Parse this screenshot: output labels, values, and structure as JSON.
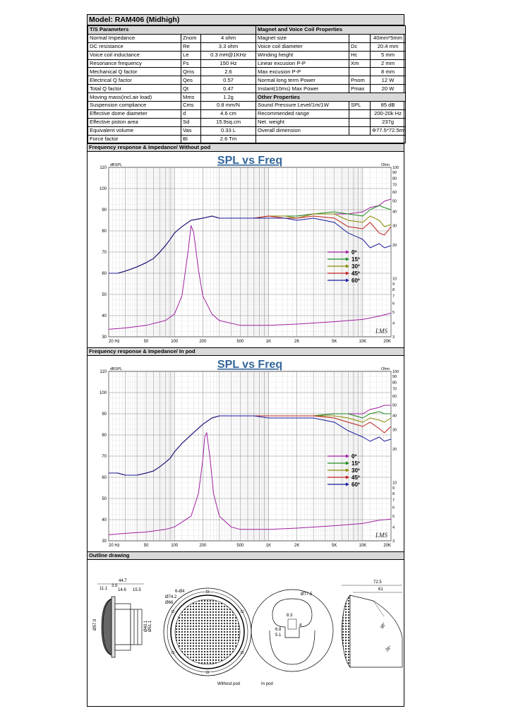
{
  "model_title": "Model: RAM406 (Midhigh)",
  "ts_header": "T/S Parameters",
  "magnet_header": "Magnet and Voice Coil Properties",
  "other_header": "Other Properties",
  "ts_params": [
    {
      "name": "Normal Impedance",
      "symbol": "Znom",
      "value": "4 ohm"
    },
    {
      "name": "DC resistance",
      "symbol": "Re",
      "value": "3.3 ohm"
    },
    {
      "name": "Voice coil inductance",
      "symbol": "Le",
      "value": "0.3 mH@1KHz"
    },
    {
      "name": "Resonance frequency",
      "symbol": "Fs",
      "value": "150 Hz"
    },
    {
      "name": "Mechanical Q factor",
      "symbol": "Qms",
      "value": "2.6"
    },
    {
      "name": "Electrical Q factor",
      "symbol": "Qes",
      "value": "0.57"
    },
    {
      "name": "Total Q factor",
      "symbol": "Qt",
      "value": "0.47"
    },
    {
      "name": "Moving mass(incl.air load)",
      "symbol": "Mms",
      "value": "1.2g"
    },
    {
      "name": "Suspension compliance",
      "symbol": "Cms",
      "value": "0.8 mm/N"
    },
    {
      "name": "Effective dome diameter",
      "symbol": "d",
      "value": "4.6 cm"
    },
    {
      "name": "Effective piston area",
      "symbol": "Sd",
      "value": "15.9sq.cm"
    },
    {
      "name": "Equivalent volume",
      "symbol": "Vas",
      "value": "0.33 L"
    },
    {
      "name": "Force factor",
      "symbol": "Bl",
      "value": "2.6 Tm"
    }
  ],
  "magnet_params": [
    {
      "name": "Magnet size",
      "symbol": "",
      "value": "40mm*5mm"
    },
    {
      "name": "Voice coil diameter",
      "symbol": "Dc",
      "value": "20.4 mm"
    },
    {
      "name": "Winding height",
      "symbol": "Hc",
      "value": "5 mm"
    },
    {
      "name": "Linear excusion P-P",
      "symbol": "Xm",
      "value": "2 mm"
    },
    {
      "name": "Max excusion P-P",
      "symbol": "",
      "value": "8 mm"
    },
    {
      "name": "Normal long term Power",
      "symbol": "Pnom",
      "value": "12 W"
    },
    {
      "name": "Instant(10ms) Max Power",
      "symbol": "Pmax",
      "value": "20 W"
    }
  ],
  "other_params": [
    {
      "name": "Sound Pressure Level/1m/1W",
      "symbol": "SPL",
      "value": "85 dB"
    },
    {
      "name": "Recommended range",
      "symbol": "",
      "value": "200-20k Hz"
    },
    {
      "name": "Net. weight",
      "symbol": "",
      "value": "237g"
    },
    {
      "name": "Overall dimension",
      "symbol": "",
      "value": "Φ77.5*72.5mm"
    }
  ],
  "section1_title": "Frequency response & Impedance/ Without pod",
  "section2_title": "Frequency response & Impedance/ In pod",
  "outline_title": "Outline drawing",
  "colors": {
    "c0": "#a020a0",
    "c15": "#1f8a1f",
    "c30": "#8a8a00",
    "c45": "#c02020",
    "c60": "#1a1aa0"
  },
  "chart_data": [
    {
      "type": "line",
      "title": "SPL vs Freq",
      "ylabel": "dBSPL",
      "y2label": "Ohm",
      "xscale": "log",
      "xlim": [
        20,
        20000
      ],
      "ylim": [
        30,
        110
      ],
      "y2lim": [
        3,
        100
      ],
      "y2scale": "log",
      "xticks": [
        "20 Hz",
        "50",
        "100",
        "200",
        "500",
        "1K",
        "2K",
        "5K",
        "10K",
        "20K"
      ],
      "yticks": [
        "110",
        "100",
        "90",
        "80",
        "70",
        "60",
        "50",
        "40",
        "30"
      ],
      "y2ticks": [
        "100",
        "90",
        "80",
        "70",
        "60",
        "50",
        "40",
        "30",
        "20",
        "10",
        "9",
        "8",
        "7",
        "6",
        "5",
        "4",
        "3"
      ],
      "legend": [
        "0º",
        "15º",
        "30º",
        "45º",
        "60º"
      ],
      "watermark": "LMS",
      "series": [
        {
          "name": "0º",
          "x": [
            20,
            25,
            30,
            40,
            50,
            60,
            70,
            80,
            90,
            100,
            120,
            150,
            200,
            250,
            300,
            400,
            500,
            700,
            1000,
            1500,
            2000,
            3000,
            5000,
            7000,
            10000,
            12000,
            15000,
            17000,
            20000
          ],
          "y": [
            60,
            60,
            61,
            63,
            65,
            67,
            70,
            73,
            76,
            79,
            82,
            85,
            86,
            87,
            86,
            86,
            86,
            86,
            87,
            87,
            87,
            88,
            88,
            88,
            89,
            91,
            92,
            94,
            95
          ]
        },
        {
          "name": "15º",
          "x": [
            20,
            25,
            30,
            40,
            50,
            60,
            70,
            80,
            90,
            100,
            120,
            150,
            200,
            250,
            300,
            400,
            500,
            700,
            1000,
            1500,
            2000,
            3000,
            5000,
            7000,
            10000,
            12000,
            15000,
            17000,
            20000
          ],
          "y": [
            60,
            60,
            61,
            63,
            65,
            67,
            70,
            73,
            76,
            79,
            82,
            85,
            86,
            87,
            86,
            86,
            86,
            86,
            87,
            87,
            87,
            88,
            89,
            88,
            87,
            90,
            92,
            91,
            90
          ]
        },
        {
          "name": "30º",
          "x": [
            20,
            25,
            30,
            40,
            50,
            60,
            70,
            80,
            90,
            100,
            120,
            150,
            200,
            250,
            300,
            400,
            500,
            700,
            1000,
            1500,
            2000,
            3000,
            5000,
            7000,
            10000,
            12000,
            15000,
            17000,
            20000
          ],
          "y": [
            60,
            60,
            61,
            63,
            65,
            67,
            70,
            73,
            76,
            79,
            82,
            85,
            86,
            87,
            86,
            86,
            86,
            86,
            87,
            87,
            86,
            88,
            88,
            85,
            84,
            87,
            85,
            82,
            83
          ]
        },
        {
          "name": "45º",
          "x": [
            20,
            25,
            30,
            40,
            50,
            60,
            70,
            80,
            90,
            100,
            120,
            150,
            200,
            250,
            300,
            400,
            500,
            700,
            1000,
            1500,
            2000,
            3000,
            5000,
            7000,
            10000,
            12000,
            15000,
            17000,
            20000
          ],
          "y": [
            60,
            60,
            61,
            63,
            65,
            67,
            70,
            73,
            76,
            79,
            82,
            85,
            86,
            87,
            86,
            86,
            86,
            86,
            87,
            86,
            86,
            87,
            86,
            82,
            81,
            84,
            79,
            78,
            82
          ]
        },
        {
          "name": "60º",
          "x": [
            20,
            25,
            30,
            40,
            50,
            60,
            70,
            80,
            90,
            100,
            120,
            150,
            200,
            250,
            300,
            400,
            500,
            700,
            1000,
            1500,
            2000,
            3000,
            5000,
            7000,
            10000,
            12000,
            15000,
            17000,
            20000
          ],
          "y": [
            60,
            60,
            61,
            63,
            65,
            67,
            70,
            73,
            76,
            79,
            82,
            85,
            86,
            87,
            86,
            86,
            86,
            86,
            86,
            86,
            85,
            86,
            84,
            79,
            76,
            72,
            74,
            72,
            73
          ]
        },
        {
          "name": "Impedance",
          "axis": "y2",
          "x": [
            20,
            30,
            50,
            80,
            100,
            120,
            140,
            150,
            160,
            180,
            200,
            250,
            300,
            500,
            1000,
            2000,
            5000,
            10000,
            15000,
            20000
          ],
          "y": [
            3.5,
            3.6,
            3.8,
            4.2,
            4.8,
            7,
            18,
            30,
            26,
            12,
            7,
            4.8,
            4.2,
            3.8,
            3.8,
            3.9,
            4.1,
            4.3,
            4.6,
            4.9
          ]
        }
      ]
    },
    {
      "type": "line",
      "title": "SPL vs Freq",
      "ylabel": "dBSPL",
      "y2label": "Ohm",
      "xscale": "log",
      "xlim": [
        20,
        20000
      ],
      "ylim": [
        30,
        110
      ],
      "y2lim": [
        3,
        100
      ],
      "y2scale": "log",
      "xticks": [
        "20 Hz",
        "50",
        "100",
        "200",
        "500",
        "1K",
        "2K",
        "5K",
        "10K",
        "20K"
      ],
      "yticks": [
        "110",
        "100",
        "90",
        "80",
        "70",
        "60",
        "50",
        "40",
        "30"
      ],
      "y2ticks": [
        "100",
        "90",
        "80",
        "70",
        "60",
        "50",
        "40",
        "30",
        "20",
        "10",
        "9",
        "8",
        "7",
        "6",
        "5",
        "4",
        "3"
      ],
      "legend": [
        "0º",
        "15º",
        "30º",
        "45º",
        "60º"
      ],
      "watermark": "LMS",
      "series": [
        {
          "name": "0º",
          "x": [
            20,
            25,
            30,
            40,
            50,
            60,
            70,
            80,
            90,
            100,
            120,
            150,
            200,
            250,
            300,
            400,
            500,
            700,
            1000,
            1500,
            2000,
            3000,
            5000,
            7000,
            10000,
            12000,
            15000,
            17000,
            20000
          ],
          "y": [
            62,
            62,
            61,
            61,
            62,
            63,
            65,
            67,
            69,
            72,
            76,
            80,
            85,
            88,
            89,
            89,
            89,
            89,
            89,
            89,
            89,
            89,
            90,
            90,
            90,
            92,
            93,
            94,
            94
          ]
        },
        {
          "name": "15º",
          "x": [
            20,
            25,
            30,
            40,
            50,
            60,
            70,
            80,
            90,
            100,
            120,
            150,
            200,
            250,
            300,
            400,
            500,
            700,
            1000,
            1500,
            2000,
            3000,
            5000,
            7000,
            10000,
            12000,
            15000,
            17000,
            20000
          ],
          "y": [
            62,
            62,
            61,
            61,
            62,
            63,
            65,
            67,
            69,
            72,
            76,
            80,
            85,
            88,
            89,
            89,
            89,
            89,
            89,
            89,
            89,
            89,
            90,
            90,
            88,
            90,
            91,
            90,
            90
          ]
        },
        {
          "name": "30º",
          "x": [
            20,
            25,
            30,
            40,
            50,
            60,
            70,
            80,
            90,
            100,
            120,
            150,
            200,
            250,
            300,
            400,
            500,
            700,
            1000,
            1500,
            2000,
            3000,
            5000,
            7000,
            10000,
            12000,
            15000,
            17000,
            20000
          ],
          "y": [
            62,
            62,
            61,
            61,
            62,
            63,
            65,
            67,
            69,
            72,
            76,
            80,
            85,
            88,
            89,
            89,
            89,
            89,
            89,
            89,
            89,
            89,
            89,
            88,
            86,
            88,
            87,
            86,
            88
          ]
        },
        {
          "name": "45º",
          "x": [
            20,
            25,
            30,
            40,
            50,
            60,
            70,
            80,
            90,
            100,
            120,
            150,
            200,
            250,
            300,
            400,
            500,
            700,
            1000,
            1500,
            2000,
            3000,
            5000,
            7000,
            10000,
            12000,
            15000,
            17000,
            20000
          ],
          "y": [
            62,
            62,
            61,
            61,
            62,
            63,
            65,
            67,
            69,
            72,
            76,
            80,
            85,
            88,
            89,
            89,
            89,
            89,
            89,
            89,
            89,
            89,
            88,
            86,
            84,
            86,
            83,
            81,
            84
          ]
        },
        {
          "name": "60º",
          "x": [
            20,
            25,
            30,
            40,
            50,
            60,
            70,
            80,
            90,
            100,
            120,
            150,
            200,
            250,
            300,
            400,
            500,
            700,
            1000,
            1500,
            2000,
            3000,
            5000,
            7000,
            10000,
            12000,
            15000,
            17000,
            20000
          ],
          "y": [
            62,
            62,
            61,
            61,
            62,
            63,
            65,
            67,
            69,
            72,
            76,
            80,
            85,
            88,
            89,
            89,
            89,
            89,
            88,
            88,
            88,
            88,
            86,
            82,
            79,
            77,
            79,
            77,
            78
          ]
        },
        {
          "name": "Impedance",
          "axis": "y2",
          "x": [
            20,
            30,
            50,
            80,
            100,
            150,
            180,
            200,
            210,
            220,
            240,
            260,
            300,
            400,
            500,
            1000,
            2000,
            5000,
            10000,
            15000,
            20000
          ],
          "y": [
            3.4,
            3.5,
            3.6,
            3.8,
            4,
            5,
            8,
            16,
            26,
            28,
            16,
            8,
            5,
            4,
            3.8,
            3.8,
            3.9,
            4.1,
            4.3,
            4.6,
            4.7
          ]
        }
      ]
    }
  ],
  "outline": {
    "side_dims": {
      "overall": "44.7",
      "d1": "3.5",
      "d2": "11.1",
      "d3": "14.6",
      "d4": "15.5",
      "h1": "Ø57.9",
      "h2": "Ø40.1",
      "h3": "Ø51.1"
    },
    "front_dims": {
      "holes": "6-Ø4",
      "outer": "Ø74.2",
      "inner": "Ø66"
    },
    "front_caption": "Without pod",
    "pod_back_dims": {
      "outer": "Ø77.5",
      "w": "8.3",
      "h": "4",
      "d": "6.8",
      "s": "5.1"
    },
    "pod_back_caption": "In pod",
    "pod_side_dims": {
      "overall": "72.5",
      "depth": "61",
      "angle1": "38°",
      "angle2": "28°"
    }
  }
}
